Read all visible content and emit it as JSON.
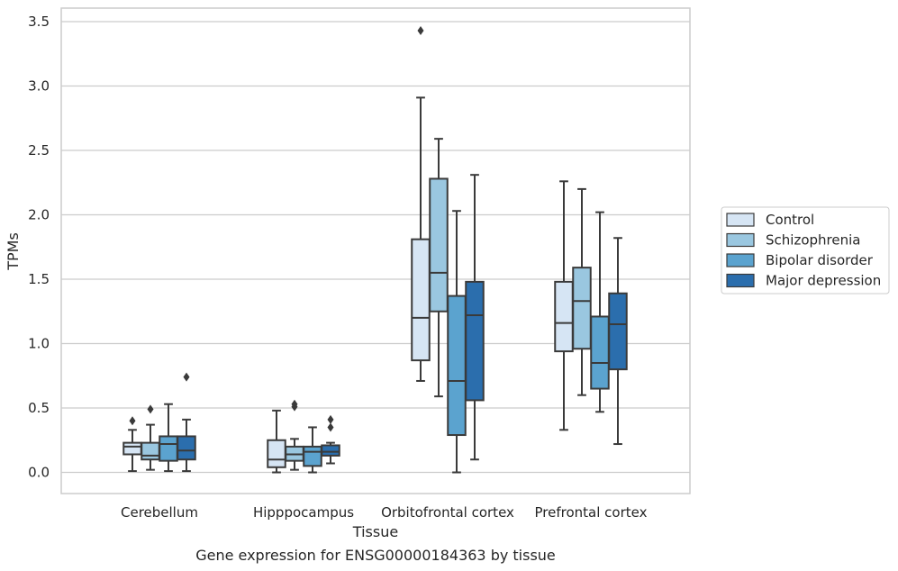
{
  "chart_data": {
    "type": "box",
    "title": "",
    "caption": "Gene expression for ENSG00000184363 by tissue",
    "xlabel": "Tissue",
    "ylabel": "TPMs",
    "ylim": [
      -0.17,
      3.6
    ],
    "yticks": [
      "0.0",
      "0.5",
      "1.0",
      "1.5",
      "2.0",
      "2.5",
      "3.0",
      "3.5"
    ],
    "ytick_values": [
      0,
      0.5,
      1.0,
      1.5,
      2.0,
      2.5,
      3.0,
      3.5
    ],
    "grid": true,
    "legend_position": "right",
    "categories": [
      "Cerebellum",
      "Hipppocampus",
      "Orbitofrontal cortex",
      "Prefrontal cortex"
    ],
    "series": [
      {
        "name": "Control",
        "color": "#d6e5f4",
        "boxes": [
          {
            "whislo": 0.01,
            "q1": 0.14,
            "med": 0.2,
            "q3": 0.23,
            "whishi": 0.33,
            "fliers": [
              0.4
            ]
          },
          {
            "whislo": 0.0,
            "q1": 0.04,
            "med": 0.1,
            "q3": 0.25,
            "whishi": 0.48,
            "fliers": []
          },
          {
            "whislo": 0.71,
            "q1": 0.87,
            "med": 1.2,
            "q3": 1.81,
            "whishi": 2.91,
            "fliers": [
              3.43
            ]
          },
          {
            "whislo": 0.33,
            "q1": 0.94,
            "med": 1.16,
            "q3": 1.48,
            "whishi": 2.26,
            "fliers": []
          }
        ]
      },
      {
        "name": "Schizophrenia",
        "color": "#9ac7e0",
        "boxes": [
          {
            "whislo": 0.02,
            "q1": 0.1,
            "med": 0.13,
            "q3": 0.23,
            "whishi": 0.37,
            "fliers": [
              0.49
            ]
          },
          {
            "whislo": 0.02,
            "q1": 0.09,
            "med": 0.14,
            "q3": 0.2,
            "whishi": 0.26,
            "fliers": [
              0.51,
              0.53
            ]
          },
          {
            "whislo": 0.59,
            "q1": 1.25,
            "med": 1.55,
            "q3": 2.28,
            "whishi": 2.59,
            "fliers": []
          },
          {
            "whislo": 0.6,
            "q1": 0.96,
            "med": 1.33,
            "q3": 1.59,
            "whishi": 2.2,
            "fliers": []
          }
        ]
      },
      {
        "name": "Bipolar disorder",
        "color": "#5ba3cf",
        "boxes": [
          {
            "whislo": 0.01,
            "q1": 0.09,
            "med": 0.22,
            "q3": 0.28,
            "whishi": 0.53,
            "fliers": []
          },
          {
            "whislo": 0.0,
            "q1": 0.05,
            "med": 0.16,
            "q3": 0.2,
            "whishi": 0.35,
            "fliers": []
          },
          {
            "whislo": 0.0,
            "q1": 0.29,
            "med": 0.71,
            "q3": 1.37,
            "whishi": 2.03,
            "fliers": []
          },
          {
            "whislo": 0.47,
            "q1": 0.65,
            "med": 0.85,
            "q3": 1.21,
            "whishi": 2.02,
            "fliers": []
          }
        ]
      },
      {
        "name": "Major depression",
        "color": "#2b6ead",
        "boxes": [
          {
            "whislo": 0.01,
            "q1": 0.1,
            "med": 0.17,
            "q3": 0.28,
            "whishi": 0.41,
            "fliers": [
              0.74
            ]
          },
          {
            "whislo": 0.07,
            "q1": 0.13,
            "med": 0.16,
            "q3": 0.21,
            "whishi": 0.23,
            "fliers": [
              0.35,
              0.41
            ]
          },
          {
            "whislo": 0.1,
            "q1": 0.56,
            "med": 1.22,
            "q3": 1.48,
            "whishi": 2.31,
            "fliers": []
          },
          {
            "whislo": 0.22,
            "q1": 0.8,
            "med": 1.15,
            "q3": 1.39,
            "whishi": 1.82,
            "fliers": []
          }
        ]
      }
    ]
  }
}
